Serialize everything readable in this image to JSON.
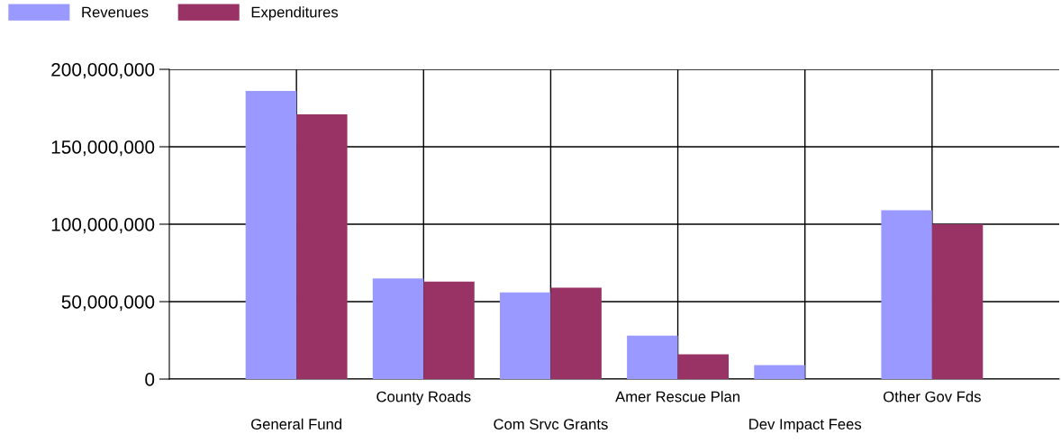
{
  "chart_data": {
    "type": "bar",
    "categories": [
      "General Fund",
      "County Roads",
      "Com Srvc Grants",
      "Amer Rescue Plan",
      "Dev Impact Fees",
      "Other Gov Fds"
    ],
    "series": [
      {
        "name": "Revenues",
        "color": "#9999ff",
        "values": [
          186000000,
          65000000,
          56000000,
          28000000,
          9000000,
          109000000
        ]
      },
      {
        "name": "Expenditures",
        "color": "#993366",
        "values": [
          171000000,
          63000000,
          59000000,
          16000000,
          0,
          100000000
        ]
      }
    ],
    "ylim": [
      0,
      200000000
    ],
    "yticks": [
      {
        "value": 0,
        "label": "0"
      },
      {
        "value": 50000000,
        "label": "50,000,000"
      },
      {
        "value": 100000000,
        "label": "100,000,000"
      },
      {
        "value": 150000000,
        "label": "150,000,000"
      },
      {
        "value": 200000000,
        "label": "200,000,000"
      }
    ],
    "grid": true,
    "legend": "top left"
  }
}
